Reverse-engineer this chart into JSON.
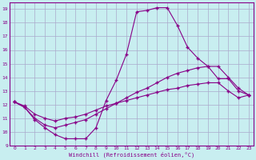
{
  "background_color": "#c8eef0",
  "grid_color": "#aaaacc",
  "line_color": "#880088",
  "marker": "+",
  "xlabel": "Windchill (Refroidissement éolien,°C)",
  "xlim": [
    -0.5,
    23.5
  ],
  "ylim": [
    9,
    19.5
  ],
  "xticks": [
    0,
    1,
    2,
    3,
    4,
    5,
    6,
    7,
    8,
    9,
    10,
    11,
    12,
    13,
    14,
    15,
    16,
    17,
    18,
    19,
    20,
    21,
    22,
    23
  ],
  "yticks": [
    9,
    10,
    11,
    12,
    13,
    14,
    15,
    16,
    17,
    18,
    19
  ],
  "line1_x": [
    0,
    1,
    2,
    3,
    4,
    5,
    6,
    7,
    8,
    9,
    10,
    11,
    12,
    13,
    14,
    15,
    16,
    17,
    18,
    19,
    20,
    21,
    22,
    23
  ],
  "line1_y": [
    12.2,
    11.8,
    10.9,
    10.3,
    9.8,
    9.5,
    9.5,
    9.5,
    10.3,
    12.3,
    13.8,
    15.7,
    18.8,
    18.9,
    19.1,
    19.1,
    17.8,
    16.2,
    15.4,
    14.8,
    13.9,
    13.9,
    13.0,
    12.7
  ],
  "line2_x": [
    0,
    1,
    2,
    3,
    4,
    5,
    6,
    7,
    8,
    9,
    10,
    11,
    12,
    13,
    14,
    15,
    16,
    17,
    18,
    19,
    20,
    21,
    22,
    23
  ],
  "line2_y": [
    12.2,
    11.8,
    11.0,
    10.5,
    10.3,
    10.5,
    10.7,
    10.9,
    11.3,
    11.7,
    12.1,
    12.5,
    12.9,
    13.2,
    13.6,
    14.0,
    14.3,
    14.5,
    14.7,
    14.8,
    14.8,
    14.0,
    13.2,
    12.7
  ],
  "line3_x": [
    0,
    1,
    2,
    3,
    4,
    5,
    6,
    7,
    8,
    9,
    10,
    11,
    12,
    13,
    14,
    15,
    16,
    17,
    18,
    19,
    20,
    21,
    22,
    23
  ],
  "line3_y": [
    12.2,
    11.9,
    11.3,
    11.0,
    10.8,
    11.0,
    11.1,
    11.3,
    11.6,
    11.9,
    12.1,
    12.3,
    12.5,
    12.7,
    12.9,
    13.1,
    13.2,
    13.4,
    13.5,
    13.6,
    13.6,
    13.0,
    12.5,
    12.7
  ]
}
